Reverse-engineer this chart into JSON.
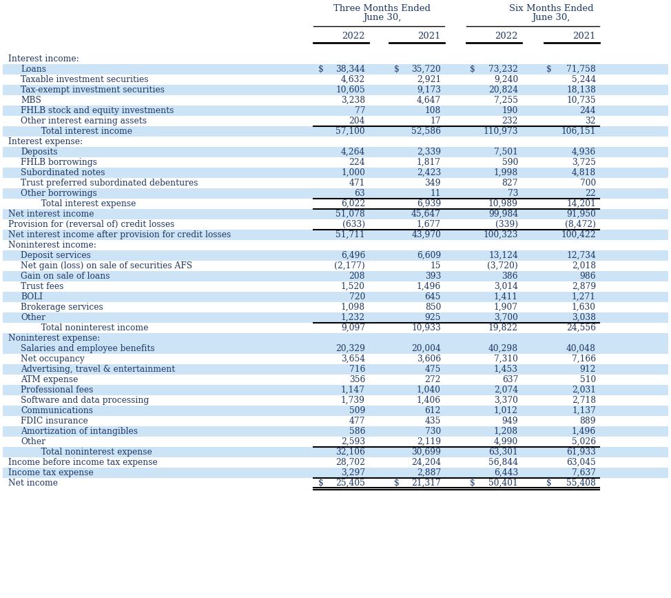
{
  "col_headers": [
    "2022",
    "2021",
    "2022",
    "2021"
  ],
  "rows": [
    {
      "label": "Interest income:",
      "indent": 0,
      "section_header": true,
      "values": [
        "",
        "",
        "",
        ""
      ],
      "dollar": [
        false,
        false,
        false,
        false
      ],
      "bg": "white",
      "bold": false,
      "top_border": false,
      "bottom_border": false
    },
    {
      "label": "Loans",
      "indent": 1,
      "section_header": false,
      "values": [
        "38,344",
        "35,720",
        "73,232",
        "71,758"
      ],
      "dollar": [
        true,
        true,
        true,
        true
      ],
      "bg": "light",
      "bold": false,
      "top_border": false,
      "bottom_border": false
    },
    {
      "label": "Taxable investment securities",
      "indent": 1,
      "section_header": false,
      "values": [
        "4,632",
        "2,921",
        "9,240",
        "5,244"
      ],
      "dollar": [
        false,
        false,
        false,
        false
      ],
      "bg": "white",
      "bold": false,
      "top_border": false,
      "bottom_border": false
    },
    {
      "label": "Tax-exempt investment securities",
      "indent": 1,
      "section_header": false,
      "values": [
        "10,605",
        "9,173",
        "20,824",
        "18,138"
      ],
      "dollar": [
        false,
        false,
        false,
        false
      ],
      "bg": "light",
      "bold": false,
      "top_border": false,
      "bottom_border": false
    },
    {
      "label": "MBS",
      "indent": 1,
      "section_header": false,
      "values": [
        "3,238",
        "4,647",
        "7,255",
        "10,735"
      ],
      "dollar": [
        false,
        false,
        false,
        false
      ],
      "bg": "white",
      "bold": false,
      "top_border": false,
      "bottom_border": false
    },
    {
      "label": "FHLB stock and equity investments",
      "indent": 1,
      "section_header": false,
      "values": [
        "77",
        "108",
        "190",
        "244"
      ],
      "dollar": [
        false,
        false,
        false,
        false
      ],
      "bg": "light",
      "bold": false,
      "top_border": false,
      "bottom_border": false
    },
    {
      "label": "Other interest earning assets",
      "indent": 1,
      "section_header": false,
      "values": [
        "204",
        "17",
        "232",
        "32"
      ],
      "dollar": [
        false,
        false,
        false,
        false
      ],
      "bg": "white",
      "bold": false,
      "top_border": false,
      "bottom_border": false
    },
    {
      "label": "   Total interest income",
      "indent": 2,
      "section_header": false,
      "values": [
        "57,100",
        "52,586",
        "110,973",
        "106,151"
      ],
      "dollar": [
        false,
        false,
        false,
        false
      ],
      "bg": "light",
      "bold": false,
      "top_border": true,
      "bottom_border": false
    },
    {
      "label": "Interest expense:",
      "indent": 0,
      "section_header": true,
      "values": [
        "",
        "",
        "",
        ""
      ],
      "dollar": [
        false,
        false,
        false,
        false
      ],
      "bg": "white",
      "bold": false,
      "top_border": false,
      "bottom_border": false
    },
    {
      "label": "Deposits",
      "indent": 1,
      "section_header": false,
      "values": [
        "4,264",
        "2,339",
        "7,501",
        "4,936"
      ],
      "dollar": [
        false,
        false,
        false,
        false
      ],
      "bg": "light",
      "bold": false,
      "top_border": false,
      "bottom_border": false
    },
    {
      "label": "FHLB borrowings",
      "indent": 1,
      "section_header": false,
      "values": [
        "224",
        "1,817",
        "590",
        "3,725"
      ],
      "dollar": [
        false,
        false,
        false,
        false
      ],
      "bg": "white",
      "bold": false,
      "top_border": false,
      "bottom_border": false
    },
    {
      "label": "Subordinated notes",
      "indent": 1,
      "section_header": false,
      "values": [
        "1,000",
        "2,423",
        "1,998",
        "4,818"
      ],
      "dollar": [
        false,
        false,
        false,
        false
      ],
      "bg": "light",
      "bold": false,
      "top_border": false,
      "bottom_border": false
    },
    {
      "label": "Trust preferred subordinated debentures",
      "indent": 1,
      "section_header": false,
      "values": [
        "471",
        "349",
        "827",
        "700"
      ],
      "dollar": [
        false,
        false,
        false,
        false
      ],
      "bg": "white",
      "bold": false,
      "top_border": false,
      "bottom_border": false
    },
    {
      "label": "Other borrowings",
      "indent": 1,
      "section_header": false,
      "values": [
        "63",
        "11",
        "73",
        "22"
      ],
      "dollar": [
        false,
        false,
        false,
        false
      ],
      "bg": "light",
      "bold": false,
      "top_border": false,
      "bottom_border": false
    },
    {
      "label": "   Total interest expense",
      "indent": 2,
      "section_header": false,
      "values": [
        "6,022",
        "6,939",
        "10,989",
        "14,201"
      ],
      "dollar": [
        false,
        false,
        false,
        false
      ],
      "bg": "white",
      "bold": false,
      "top_border": true,
      "bottom_border": false
    },
    {
      "label": "Net interest income",
      "indent": 0,
      "section_header": false,
      "values": [
        "51,078",
        "45,647",
        "99,984",
        "91,950"
      ],
      "dollar": [
        false,
        false,
        false,
        false
      ],
      "bg": "light",
      "bold": false,
      "top_border": true,
      "bottom_border": false
    },
    {
      "label": "Provision for (reversal of) credit losses",
      "indent": 0,
      "section_header": false,
      "values": [
        "(633)",
        "1,677",
        "(339)",
        "(8,472)"
      ],
      "dollar": [
        false,
        false,
        false,
        false
      ],
      "bg": "white",
      "bold": false,
      "top_border": false,
      "bottom_border": false
    },
    {
      "label": "Net interest income after provision for credit losses",
      "indent": 0,
      "section_header": false,
      "values": [
        "51,711",
        "43,970",
        "100,323",
        "100,422"
      ],
      "dollar": [
        false,
        false,
        false,
        false
      ],
      "bg": "light",
      "bold": false,
      "top_border": true,
      "bottom_border": false
    },
    {
      "label": "Noninterest income:",
      "indent": 0,
      "section_header": true,
      "values": [
        "",
        "",
        "",
        ""
      ],
      "dollar": [
        false,
        false,
        false,
        false
      ],
      "bg": "white",
      "bold": false,
      "top_border": false,
      "bottom_border": false
    },
    {
      "label": "Deposit services",
      "indent": 1,
      "section_header": false,
      "values": [
        "6,496",
        "6,609",
        "13,124",
        "12,734"
      ],
      "dollar": [
        false,
        false,
        false,
        false
      ],
      "bg": "light",
      "bold": false,
      "top_border": false,
      "bottom_border": false
    },
    {
      "label": "Net gain (loss) on sale of securities AFS",
      "indent": 1,
      "section_header": false,
      "values": [
        "(2,177)",
        "15",
        "(3,720)",
        "2,018"
      ],
      "dollar": [
        false,
        false,
        false,
        false
      ],
      "bg": "white",
      "bold": false,
      "top_border": false,
      "bottom_border": false
    },
    {
      "label": "Gain on sale of loans",
      "indent": 1,
      "section_header": false,
      "values": [
        "208",
        "393",
        "386",
        "986"
      ],
      "dollar": [
        false,
        false,
        false,
        false
      ],
      "bg": "light",
      "bold": false,
      "top_border": false,
      "bottom_border": false
    },
    {
      "label": "Trust fees",
      "indent": 1,
      "section_header": false,
      "values": [
        "1,520",
        "1,496",
        "3,014",
        "2,879"
      ],
      "dollar": [
        false,
        false,
        false,
        false
      ],
      "bg": "white",
      "bold": false,
      "top_border": false,
      "bottom_border": false
    },
    {
      "label": "BOLI",
      "indent": 1,
      "section_header": false,
      "values": [
        "720",
        "645",
        "1,411",
        "1,271"
      ],
      "dollar": [
        false,
        false,
        false,
        false
      ],
      "bg": "light",
      "bold": false,
      "top_border": false,
      "bottom_border": false
    },
    {
      "label": "Brokerage services",
      "indent": 1,
      "section_header": false,
      "values": [
        "1,098",
        "850",
        "1,907",
        "1,630"
      ],
      "dollar": [
        false,
        false,
        false,
        false
      ],
      "bg": "white",
      "bold": false,
      "top_border": false,
      "bottom_border": false
    },
    {
      "label": "Other",
      "indent": 1,
      "section_header": false,
      "values": [
        "1,232",
        "925",
        "3,700",
        "3,038"
      ],
      "dollar": [
        false,
        false,
        false,
        false
      ],
      "bg": "light",
      "bold": false,
      "top_border": false,
      "bottom_border": false
    },
    {
      "label": "   Total noninterest income",
      "indent": 2,
      "section_header": false,
      "values": [
        "9,097",
        "10,933",
        "19,822",
        "24,556"
      ],
      "dollar": [
        false,
        false,
        false,
        false
      ],
      "bg": "white",
      "bold": false,
      "top_border": true,
      "bottom_border": false
    },
    {
      "label": "Noninterest expense:",
      "indent": 0,
      "section_header": true,
      "values": [
        "",
        "",
        "",
        ""
      ],
      "dollar": [
        false,
        false,
        false,
        false
      ],
      "bg": "light",
      "bold": false,
      "top_border": false,
      "bottom_border": false
    },
    {
      "label": "Salaries and employee benefits",
      "indent": 1,
      "section_header": false,
      "values": [
        "20,329",
        "20,004",
        "40,298",
        "40,048"
      ],
      "dollar": [
        false,
        false,
        false,
        false
      ],
      "bg": "light",
      "bold": false,
      "top_border": false,
      "bottom_border": false
    },
    {
      "label": "Net occupancy",
      "indent": 1,
      "section_header": false,
      "values": [
        "3,654",
        "3,606",
        "7,310",
        "7,166"
      ],
      "dollar": [
        false,
        false,
        false,
        false
      ],
      "bg": "white",
      "bold": false,
      "top_border": false,
      "bottom_border": false
    },
    {
      "label": "Advertising, travel & entertainment",
      "indent": 1,
      "section_header": false,
      "values": [
        "716",
        "475",
        "1,453",
        "912"
      ],
      "dollar": [
        false,
        false,
        false,
        false
      ],
      "bg": "light",
      "bold": false,
      "top_border": false,
      "bottom_border": false
    },
    {
      "label": "ATM expense",
      "indent": 1,
      "section_header": false,
      "values": [
        "356",
        "272",
        "637",
        "510"
      ],
      "dollar": [
        false,
        false,
        false,
        false
      ],
      "bg": "white",
      "bold": false,
      "top_border": false,
      "bottom_border": false
    },
    {
      "label": "Professional fees",
      "indent": 1,
      "section_header": false,
      "values": [
        "1,147",
        "1,040",
        "2,074",
        "2,031"
      ],
      "dollar": [
        false,
        false,
        false,
        false
      ],
      "bg": "light",
      "bold": false,
      "top_border": false,
      "bottom_border": false
    },
    {
      "label": "Software and data processing",
      "indent": 1,
      "section_header": false,
      "values": [
        "1,739",
        "1,406",
        "3,370",
        "2,718"
      ],
      "dollar": [
        false,
        false,
        false,
        false
      ],
      "bg": "white",
      "bold": false,
      "top_border": false,
      "bottom_border": false
    },
    {
      "label": "Communications",
      "indent": 1,
      "section_header": false,
      "values": [
        "509",
        "612",
        "1,012",
        "1,137"
      ],
      "dollar": [
        false,
        false,
        false,
        false
      ],
      "bg": "light",
      "bold": false,
      "top_border": false,
      "bottom_border": false
    },
    {
      "label": "FDIC insurance",
      "indent": 1,
      "section_header": false,
      "values": [
        "477",
        "435",
        "949",
        "889"
      ],
      "dollar": [
        false,
        false,
        false,
        false
      ],
      "bg": "white",
      "bold": false,
      "top_border": false,
      "bottom_border": false
    },
    {
      "label": "Amortization of intangibles",
      "indent": 1,
      "section_header": false,
      "values": [
        "586",
        "730",
        "1,208",
        "1,496"
      ],
      "dollar": [
        false,
        false,
        false,
        false
      ],
      "bg": "light",
      "bold": false,
      "top_border": false,
      "bottom_border": false
    },
    {
      "label": "Other",
      "indent": 1,
      "section_header": false,
      "values": [
        "2,593",
        "2,119",
        "4,990",
        "5,026"
      ],
      "dollar": [
        false,
        false,
        false,
        false
      ],
      "bg": "white",
      "bold": false,
      "top_border": false,
      "bottom_border": false
    },
    {
      "label": "   Total noninterest expense",
      "indent": 2,
      "section_header": false,
      "values": [
        "32,106",
        "30,699",
        "63,301",
        "61,933"
      ],
      "dollar": [
        false,
        false,
        false,
        false
      ],
      "bg": "light",
      "bold": false,
      "top_border": true,
      "bottom_border": false
    },
    {
      "label": "Income before income tax expense",
      "indent": 0,
      "section_header": false,
      "values": [
        "28,702",
        "24,204",
        "56,844",
        "63,045"
      ],
      "dollar": [
        false,
        false,
        false,
        false
      ],
      "bg": "white",
      "bold": false,
      "top_border": false,
      "bottom_border": false
    },
    {
      "label": "Income tax expense",
      "indent": 0,
      "section_header": false,
      "values": [
        "3,297",
        "2,887",
        "6,443",
        "7,637"
      ],
      "dollar": [
        false,
        false,
        false,
        false
      ],
      "bg": "light",
      "bold": false,
      "top_border": false,
      "bottom_border": false
    },
    {
      "label": "Net income",
      "indent": 0,
      "section_header": false,
      "values": [
        "25,405",
        "21,317",
        "50,401",
        "55,408"
      ],
      "dollar": [
        true,
        true,
        true,
        true
      ],
      "bg": "white",
      "bold": false,
      "top_border": true,
      "bottom_border": true
    }
  ],
  "text_color": "#1f3864",
  "bg_light": "#cce4f5",
  "font_size": 8.8,
  "header_font_size": 9.5
}
